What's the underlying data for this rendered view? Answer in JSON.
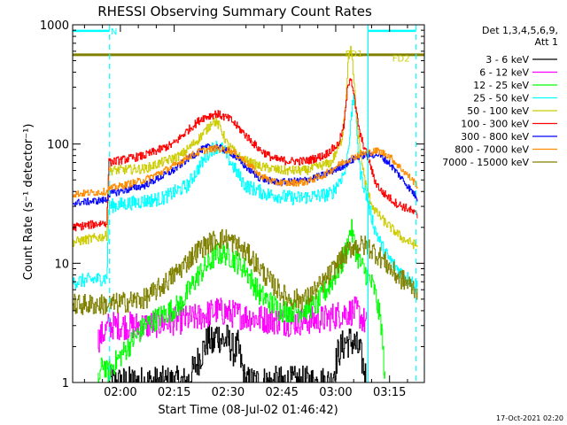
{
  "chart_data": {
    "type": "line",
    "title": "RHESSI Observing Summary Count Rates",
    "xlabel": "Start Time (08-Jul-02 01:46:42)",
    "ylabel": "Count Rate (s⁻¹ detector⁻¹)",
    "yscale": "log",
    "ylim": [
      1,
      1000
    ],
    "xlim_minutes": [
      0,
      98
    ],
    "x_ticks": [
      {
        "minute": 13.3,
        "label": "02:00"
      },
      {
        "minute": 28.3,
        "label": "02:15"
      },
      {
        "minute": 43.3,
        "label": "02:30"
      },
      {
        "minute": 58.3,
        "label": "02:45"
      },
      {
        "minute": 73.3,
        "label": "03:00"
      },
      {
        "minute": 88.3,
        "label": "03:15"
      }
    ],
    "y_ticks": [
      {
        "value": 1,
        "label": "1"
      },
      {
        "value": 10,
        "label": "10"
      },
      {
        "value": 100,
        "label": "100"
      },
      {
        "value": 1000,
        "label": "1000"
      }
    ],
    "legend": {
      "header_line1": "Det 1,3,4,5,6,9,",
      "header_line2": "Att 1",
      "position": "right"
    },
    "series": [
      {
        "name": "3 - 6 keV",
        "color": "#000000",
        "noise": 0.14,
        "from": 10,
        "x": [
          10,
          32,
          36,
          38,
          39,
          40,
          42,
          43,
          45,
          46,
          48,
          72,
          74,
          76,
          78,
          80,
          82
        ],
        "values": [
          1.0,
          1.0,
          1.8,
          2.4,
          2.0,
          2.6,
          2.2,
          2.3,
          1.8,
          2.0,
          1.0,
          1.0,
          1.8,
          2.2,
          2.2,
          1.8,
          1.0
        ]
      },
      {
        "name": "6 - 12 keV",
        "color": "#ff00ff",
        "noise": 0.12,
        "x": [
          7,
          9,
          10,
          20,
          35,
          40,
          50,
          60,
          70,
          75,
          79,
          82
        ],
        "values": [
          2.3,
          2.7,
          3.0,
          3.0,
          3.5,
          4.0,
          3.5,
          3.2,
          3.4,
          3.8,
          4.0,
          3.0
        ]
      },
      {
        "name": "12 - 25 keV",
        "color": "#00ff00",
        "noise": 0.1,
        "x": [
          7,
          8.5,
          9.5,
          20,
          30,
          35,
          38,
          40,
          43,
          48,
          52,
          58,
          63,
          68,
          72,
          75,
          76.5,
          77.5,
          78.5,
          80,
          82,
          84,
          86,
          87
        ],
        "values": [
          1.0,
          1.5,
          1.2,
          3.0,
          4.5,
          8.0,
          10.0,
          12.0,
          12.0,
          9.0,
          5.5,
          4.0,
          4.0,
          4.5,
          7.0,
          10.0,
          14.0,
          20.0,
          14.0,
          10.0,
          8.0,
          6.0,
          3.0,
          1.0
        ]
      },
      {
        "name": "25 - 50 keV",
        "color": "#00ffff",
        "noise": 0.06,
        "x": [
          0,
          9.5,
          10,
          25,
          32,
          36,
          38.5,
          40,
          42,
          44,
          48,
          54,
          62,
          72,
          76,
          77.5,
          78.3,
          79,
          80,
          82,
          84,
          86,
          88,
          92,
          96
        ],
        "values": [
          7.0,
          7.5,
          30.0,
          35.0,
          45.0,
          70.0,
          90.0,
          95.0,
          90.0,
          70.0,
          45.0,
          38.0,
          35.0,
          38.0,
          60.0,
          150.0,
          270.0,
          150.0,
          60.0,
          35.0,
          20.0,
          14.0,
          11.0,
          8.0,
          6.5
        ]
      },
      {
        "name": "50 - 100 keV",
        "color": "#cccc00",
        "noise": 0.04,
        "x": [
          0,
          9.5,
          10,
          20,
          30,
          35,
          38,
          39,
          40,
          41,
          43,
          47,
          52,
          58,
          65,
          72,
          75,
          76,
          76.7,
          77.4,
          78,
          78.6,
          79.5,
          80.5,
          82,
          84,
          87,
          92,
          96
        ],
        "values": [
          15.0,
          17.0,
          60.0,
          62.0,
          80.0,
          110.0,
          140.0,
          160.0,
          150.0,
          140.0,
          100.0,
          75.0,
          65.0,
          60.0,
          60.0,
          70.0,
          110.0,
          220.0,
          500.0,
          650.0,
          450.0,
          250.0,
          120.0,
          70.0,
          40.0,
          28.0,
          22.0,
          16.0,
          14.0
        ]
      },
      {
        "name": "100 - 300 keV",
        "color": "#ff0000",
        "noise": 0.035,
        "x": [
          0,
          9.5,
          10,
          20,
          28,
          32,
          36,
          40,
          44,
          48,
          52,
          56,
          60,
          65,
          70,
          74,
          75.5,
          76.5,
          77.3,
          78,
          78.8,
          80,
          82,
          83,
          84,
          86,
          90,
          94,
          96
        ],
        "values": [
          20.0,
          22.0,
          70.0,
          80.0,
          100.0,
          130.0,
          165.0,
          180.0,
          160.0,
          120.0,
          90.0,
          75.0,
          72.0,
          72.0,
          80.0,
          100.0,
          140.0,
          280.0,
          380.0,
          300.0,
          200.0,
          120.0,
          80.0,
          65.0,
          50.0,
          40.0,
          32.0,
          28.0,
          25.0
        ]
      },
      {
        "name": "300 - 800 keV",
        "color": "#0000ff",
        "noise": 0.03,
        "x": [
          0,
          9.5,
          10,
          20,
          28,
          32,
          36,
          38,
          40,
          44,
          48,
          52,
          56,
          60,
          65,
          70,
          75,
          80,
          85,
          88,
          92,
          96
        ],
        "values": [
          32.0,
          34.0,
          38.0,
          45.0,
          60.0,
          75.0,
          90.0,
          95.0,
          95.0,
          85.0,
          65.0,
          52.0,
          48.0,
          48.0,
          50.0,
          55.0,
          65.0,
          80.0,
          82.0,
          70.0,
          50.0,
          35.0
        ]
      },
      {
        "name": "800 - 7000 keV",
        "color": "#ff8c00",
        "noise": 0.03,
        "x": [
          0,
          9.5,
          10,
          20,
          28,
          32,
          36,
          40,
          44,
          48,
          52,
          56,
          60,
          65,
          70,
          75,
          80,
          85,
          88,
          92,
          96
        ],
        "values": [
          38.0,
          40.0,
          42.0,
          50.0,
          65.0,
          78.0,
          88.0,
          92.0,
          88.0,
          72.0,
          55.0,
          48.0,
          47.0,
          48.0,
          55.0,
          70.0,
          82.0,
          88.0,
          80.0,
          60.0,
          45.0
        ]
      },
      {
        "name": "7000 - 15000 keV",
        "color": "#808000",
        "noise": 0.09,
        "x": [
          0,
          10,
          20,
          25,
          30,
          35,
          40,
          43,
          46,
          50,
          55,
          60,
          65,
          70,
          75,
          78,
          82,
          86,
          90,
          94,
          96
        ],
        "values": [
          4.5,
          4.5,
          5.0,
          6.5,
          9.0,
          13.0,
          16.0,
          16.0,
          14.0,
          11.0,
          7.0,
          5.0,
          5.0,
          7.0,
          11.0,
          14.0,
          14.0,
          11.0,
          8.0,
          6.5,
          6.0
        ]
      }
    ],
    "annotations": [
      {
        "text": "N",
        "color": "#00ffff",
        "minute": 11.5,
        "value": 890
      },
      {
        "text": "FD1",
        "color": "#cccc00",
        "minute": 78.4,
        "value": 580
      },
      {
        "text": "FD2",
        "color": "#cccc00",
        "minute": 91.5,
        "value": 525
      }
    ],
    "reference_levels": [
      {
        "color": "#808000",
        "value": 560,
        "from_minute": 0,
        "to_minute": 98
      }
    ],
    "intervals": [
      {
        "color": "#00ffff",
        "from_minute": 0,
        "to_minute": 10.3,
        "value": 890
      },
      {
        "color": "#00ffff",
        "from_minute": 82.3,
        "to_minute": 95.7,
        "value": 890
      }
    ],
    "markers": [
      {
        "color": "#00ffff",
        "style": "dashed",
        "minute": 10.3
      },
      {
        "color": "#00ffff",
        "style": "solid",
        "minute": 82.3
      },
      {
        "color": "#00ffff",
        "style": "dashed",
        "minute": 95.7
      }
    ]
  },
  "footer": {
    "timestamp": "17-Oct-2021 02:20"
  }
}
